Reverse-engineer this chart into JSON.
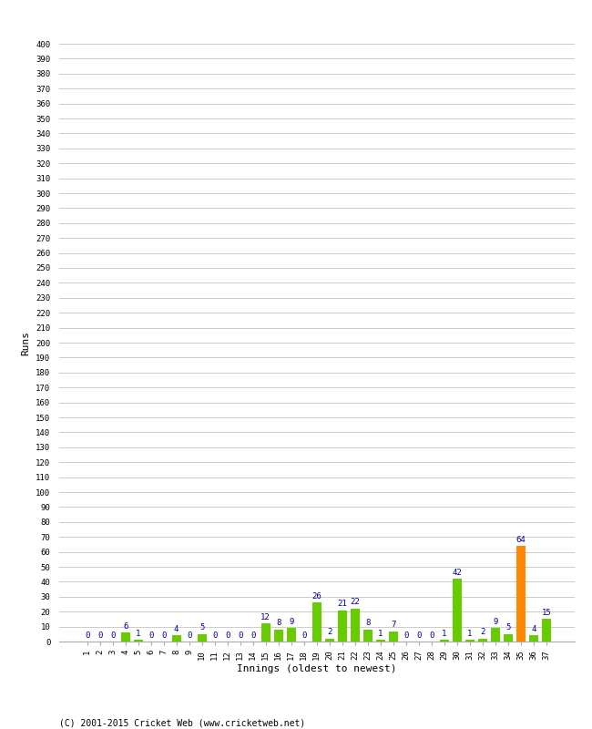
{
  "innings": [
    1,
    2,
    3,
    4,
    5,
    6,
    7,
    8,
    9,
    10,
    11,
    12,
    13,
    14,
    15,
    16,
    17,
    18,
    19,
    20,
    21,
    22,
    23,
    24,
    25,
    26,
    27,
    28,
    29,
    30,
    31,
    32,
    33,
    34,
    35,
    36,
    37
  ],
  "values": [
    0,
    0,
    0,
    6,
    1,
    0,
    0,
    4,
    0,
    5,
    0,
    0,
    0,
    0,
    12,
    8,
    9,
    0,
    26,
    2,
    21,
    22,
    8,
    1,
    7,
    0,
    0,
    0,
    1,
    42,
    1,
    2,
    9,
    5,
    64,
    4,
    15
  ],
  "colors": [
    "#66cc00",
    "#66cc00",
    "#66cc00",
    "#66cc00",
    "#66cc00",
    "#66cc00",
    "#66cc00",
    "#66cc00",
    "#66cc00",
    "#66cc00",
    "#66cc00",
    "#66cc00",
    "#66cc00",
    "#66cc00",
    "#66cc00",
    "#66cc00",
    "#66cc00",
    "#66cc00",
    "#66cc00",
    "#66cc00",
    "#66cc00",
    "#66cc00",
    "#66cc00",
    "#66cc00",
    "#66cc00",
    "#66cc00",
    "#66cc00",
    "#66cc00",
    "#66cc00",
    "#66cc00",
    "#66cc00",
    "#66cc00",
    "#66cc00",
    "#66cc00",
    "#ff8800",
    "#66cc00",
    "#66cc00"
  ],
  "xlabel": "Innings (oldest to newest)",
  "ylabel": "Runs",
  "footer": "(C) 2001-2015 Cricket Web (www.cricketweb.net)",
  "ylim": [
    0,
    400
  ],
  "yticks": [
    0,
    10,
    20,
    30,
    40,
    50,
    60,
    70,
    80,
    90,
    100,
    110,
    120,
    130,
    140,
    150,
    160,
    170,
    180,
    190,
    200,
    210,
    220,
    230,
    240,
    250,
    260,
    270,
    280,
    290,
    300,
    310,
    320,
    330,
    340,
    350,
    360,
    370,
    380,
    390,
    400
  ],
  "label_color": "#000099",
  "bg_color": "#ffffff",
  "grid_color": "#cccccc"
}
